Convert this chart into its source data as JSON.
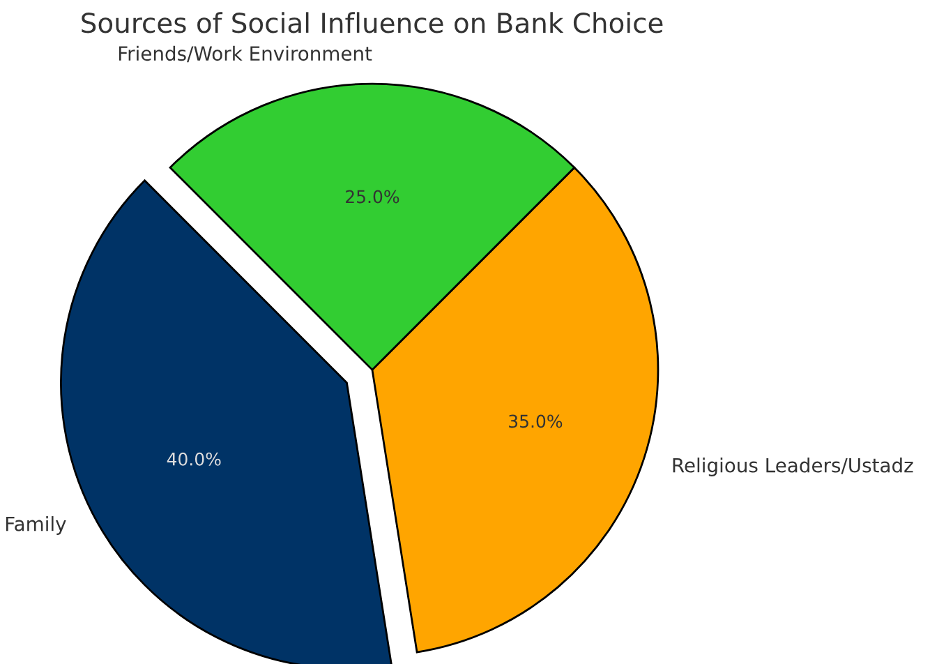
{
  "chart_data": {
    "type": "pie",
    "title": "Sources of Social Influence on Bank Choice",
    "categories": [
      "Family",
      "Religious Leaders/Ustadz",
      "Friends/Work Environment"
    ],
    "values": [
      40,
      35,
      25
    ],
    "colors": [
      "#003366",
      "#ffa500",
      "#32cd32"
    ],
    "value_labels": [
      "40.0%",
      "35.0%",
      "25.0%"
    ]
  }
}
